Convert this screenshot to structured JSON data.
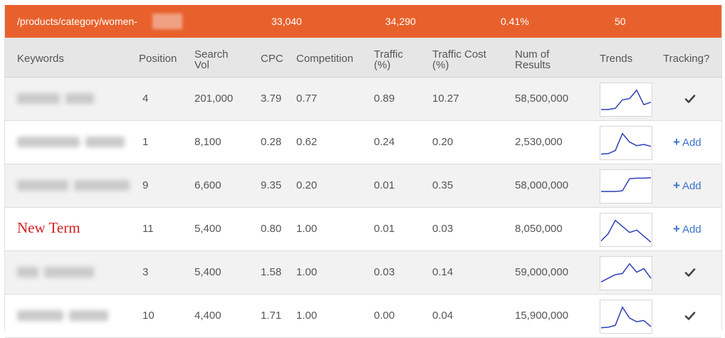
{
  "summary": {
    "url": "/products/category/women-",
    "search_vol": "33,040",
    "traffic": "34,290",
    "share": "0.41%",
    "count": "50",
    "bar_color": "#e8612c"
  },
  "columns": {
    "keywords": "Keywords",
    "position": "Position",
    "search_vol_1": "Search",
    "search_vol_2": "Vol",
    "cpc": "CPC",
    "competition": "Competition",
    "traffic_1": "Traffic",
    "traffic_2": "(%)",
    "traffic_cost_1": "Traffic Cost",
    "traffic_cost_2": "(%)",
    "num_results_1": "Num of",
    "num_results_2": "Results",
    "trends": "Trends",
    "tracking": "Tracking?"
  },
  "rows": [
    {
      "keyword": "",
      "keyword_redacted": true,
      "position": "4",
      "search_vol": "201,000",
      "cpc": "3.79",
      "competition": "0.77",
      "traffic": "0.89",
      "traffic_cost": "10.27",
      "num_results": "58,500,000",
      "trend": [
        0.15,
        0.15,
        0.2,
        0.55,
        0.6,
        0.95,
        0.35,
        0.45
      ],
      "tracking": "tracked"
    },
    {
      "keyword": "",
      "keyword_redacted": true,
      "position": "1",
      "search_vol": "8,100",
      "cpc": "0.28",
      "competition": "0.62",
      "traffic": "0.24",
      "traffic_cost": "0.20",
      "num_results": "2,530,000",
      "trend": [
        0.1,
        0.12,
        0.25,
        0.95,
        0.6,
        0.45,
        0.5,
        0.42
      ],
      "tracking": "add"
    },
    {
      "keyword": "",
      "keyword_redacted": true,
      "position": "9",
      "search_vol": "6,600",
      "cpc": "9.35",
      "competition": "0.20",
      "traffic": "0.01",
      "traffic_cost": "0.35",
      "num_results": "58,000,000",
      "trend": [
        0.35,
        0.35,
        0.35,
        0.38,
        0.88,
        0.9,
        0.9,
        0.92
      ],
      "tracking": "add"
    },
    {
      "keyword": "New Term",
      "keyword_redacted": false,
      "position": "11",
      "search_vol": "5,400",
      "cpc": "0.80",
      "competition": "1.00",
      "traffic": "0.01",
      "traffic_cost": "0.03",
      "num_results": "8,050,000",
      "trend": [
        0.1,
        0.4,
        0.95,
        0.7,
        0.45,
        0.55,
        0.3,
        0.05
      ],
      "tracking": "add"
    },
    {
      "keyword": "",
      "keyword_redacted": true,
      "position": "3",
      "search_vol": "5,400",
      "cpc": "1.58",
      "competition": "1.00",
      "traffic": "0.03",
      "traffic_cost": "0.14",
      "num_results": "59,000,000",
      "trend": [
        0.2,
        0.35,
        0.5,
        0.55,
        0.95,
        0.6,
        0.75,
        0.35
      ],
      "tracking": "tracked"
    },
    {
      "keyword": "",
      "keyword_redacted": true,
      "position": "10",
      "search_vol": "4,400",
      "cpc": "1.71",
      "competition": "1.00",
      "traffic": "0.00",
      "traffic_cost": "0.04",
      "num_results": "15,900,000",
      "trend": [
        0.1,
        0.12,
        0.2,
        0.95,
        0.5,
        0.35,
        0.4,
        0.15
      ],
      "tracking": "tracked"
    }
  ],
  "add_label": "Add",
  "colors": {
    "link": "#3b74c9",
    "new_term": "#d22020",
    "trend_line": "#2d3fb5",
    "checkmark": "#444444"
  },
  "icons": {
    "tracked": "checkmark-icon",
    "add": "plus-icon"
  }
}
